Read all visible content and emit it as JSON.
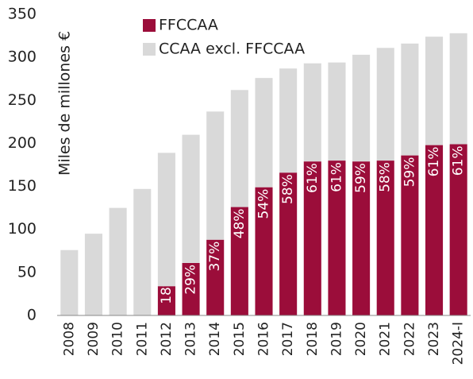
{
  "chart_data": {
    "type": "stacked_bar",
    "y_label": "Miles de millones €",
    "categories": [
      "2008",
      "2009",
      "2010",
      "2011",
      "2012",
      "2013",
      "2014",
      "2015",
      "2016",
      "2017",
      "2018",
      "2019",
      "2020",
      "2021",
      "2022",
      "2023",
      "2024-I"
    ],
    "series": [
      {
        "name": "FFCCAA",
        "color": "#9b0d3a",
        "values": [
          null,
          null,
          null,
          null,
          34,
          61,
          88,
          126,
          149,
          166,
          179,
          180,
          179,
          180,
          186,
          198,
          199
        ],
        "share_labels": [
          null,
          null,
          null,
          null,
          "18%",
          "29%",
          "37%",
          "48%",
          "54%",
          "58%",
          "61%",
          "61%",
          "59%",
          "58%",
          "59%",
          "61%",
          "61%"
        ]
      },
      {
        "name": "CCAA excl. FFCCAA",
        "color": "#d9d9d9",
        "values": [
          76,
          95,
          125,
          147,
          155,
          149,
          149,
          136,
          127,
          121,
          114,
          114,
          124,
          131,
          130,
          126,
          129
        ]
      }
    ],
    "ylim": [
      0,
      350
    ],
    "yticks": [
      0,
      50,
      100,
      150,
      200,
      250,
      300,
      350
    ],
    "grid": false
  }
}
